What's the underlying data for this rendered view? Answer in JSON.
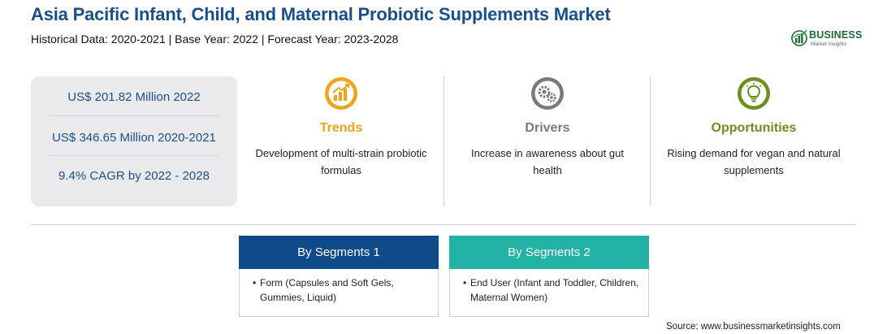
{
  "header": {
    "title": "Asia Pacific Infant, Child, and Maternal Probiotic Supplements Market",
    "subtitle": "Historical Data: 2020-2021 | Base Year: 2022 | Forecast Year: 2023-2028"
  },
  "logo": {
    "name": "BUSINESS",
    "tagline": "Market Insights"
  },
  "stats": [
    "US$ 201.82 Million 2022",
    "US$ 346.65 Million 2020-2021",
    "9.4% CAGR by 2022 - 2028"
  ],
  "columns": {
    "trends": {
      "heading": "Trends",
      "text": "Development of multi-strain probiotic formulas",
      "icon": "trend-chart-icon",
      "color": "#f0a21b"
    },
    "drivers": {
      "heading": "Drivers",
      "text": "Increase in awareness about gut health",
      "icon": "gears-icon",
      "color": "#7a7a7a"
    },
    "opportunities": {
      "heading": "Opportunities",
      "text": "Rising demand for vegan and natural supplements",
      "icon": "lightbulb-icon",
      "color": "#6a8f1f"
    }
  },
  "segments": [
    {
      "heading": "By Segments 1",
      "item": "Form (Capsules and Soft Gels, Gummies, Liquid)",
      "color": "#0f4a8a"
    },
    {
      "heading": "By Segments 2",
      "item": "End User (Infant and Toddler, Children, Maternal Women)",
      "color": "#22b2a6"
    }
  ],
  "source": "Source: www.businessmarketinsights.com"
}
